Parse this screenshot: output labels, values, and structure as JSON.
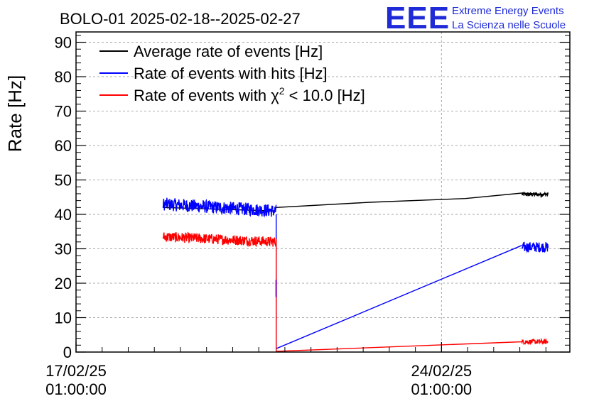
{
  "chart_data": {
    "type": "line",
    "title": "BOLO-01 2025-02-18--2025-02-27",
    "ylabel": "Rate [Hz]",
    "xlabel": "",
    "ylim": [
      0,
      93
    ],
    "yticks": [
      0,
      10,
      20,
      30,
      40,
      50,
      60,
      70,
      80,
      90
    ],
    "x_is_date": true,
    "xlim": [
      "2025-02-17T01:00",
      "2025-02-26T12:00"
    ],
    "xticks": [
      {
        "x": "2025-02-17T01:00",
        "label1": "17/02/25",
        "label2": "01:00:00"
      },
      {
        "x": "2025-02-24T01:00",
        "label1": "24/02/25",
        "label2": "01:00:00"
      }
    ],
    "grid": true,
    "legend_position": "top-left",
    "series": [
      {
        "name": "Average rate of events [Hz]",
        "legend_label_main": "Average rate of events [Hz]",
        "color": "#000000",
        "points": [
          {
            "x": "2025-02-18T17:00",
            "y": 42.0
          },
          {
            "x": "2025-02-20T20:30",
            "y": 41.0
          },
          {
            "x": "2025-02-20T21:00",
            "y": 42.0
          },
          {
            "x": "2025-02-22T16:00",
            "y": 43.5
          },
          {
            "x": "2025-02-24T12:00",
            "y": 44.6
          },
          {
            "x": "2025-02-25T14:00",
            "y": 46.2
          },
          {
            "x": "2025-02-26T00:00",
            "y": 45.8
          }
        ],
        "noisy_segments": [
          {
            "from": "2025-02-25T14:00",
            "to": "2025-02-26T02:00",
            "mean": 45.8,
            "amp": 0.6
          }
        ]
      },
      {
        "name": "Rate of events with hits [Hz]",
        "legend_label_main": "Rate of events with hits [Hz]",
        "color": "#0000ff",
        "points": [
          {
            "x": "2025-02-20T21:00",
            "y": 40.0
          },
          {
            "x": "2025-02-20T21:01",
            "y": 1.0
          },
          {
            "x": "2025-02-25T14:00",
            "y": 31.0
          }
        ],
        "noisy_segments": [
          {
            "from": "2025-02-18T17:00",
            "to": "2025-02-20T21:00",
            "mean": 42.0,
            "amp": 1.9,
            "start": 43.0,
            "end": 41.0
          },
          {
            "from": "2025-02-25T14:00",
            "to": "2025-02-26T02:00",
            "mean": 30.5,
            "amp": 1.5
          }
        ]
      },
      {
        "name": "Rate of events with χ² < 10.0 [Hz]",
        "legend_label_main": "Rate of events with χ",
        "legend_label_sup": "2",
        "legend_label_tail": " < 10.0 [Hz]",
        "color": "#ff0000",
        "points": [
          {
            "x": "2025-02-20T21:00",
            "y": 32.5
          },
          {
            "x": "2025-02-20T21:01",
            "y": 0.2
          },
          {
            "x": "2025-02-25T14:00",
            "y": 3.0
          }
        ],
        "noisy_segments": [
          {
            "from": "2025-02-18T17:00",
            "to": "2025-02-20T21:00",
            "mean": 32.8,
            "amp": 1.5,
            "start": 33.5,
            "end": 32.0
          },
          {
            "from": "2025-02-25T14:00",
            "to": "2025-02-26T02:00",
            "mean": 3.0,
            "amp": 0.7
          }
        ]
      }
    ]
  },
  "logo": {
    "mark": "EEE",
    "line1": "Extreme Energy Events",
    "line2": "La Scienza nelle Scuole",
    "color": "#1f2bd6"
  }
}
